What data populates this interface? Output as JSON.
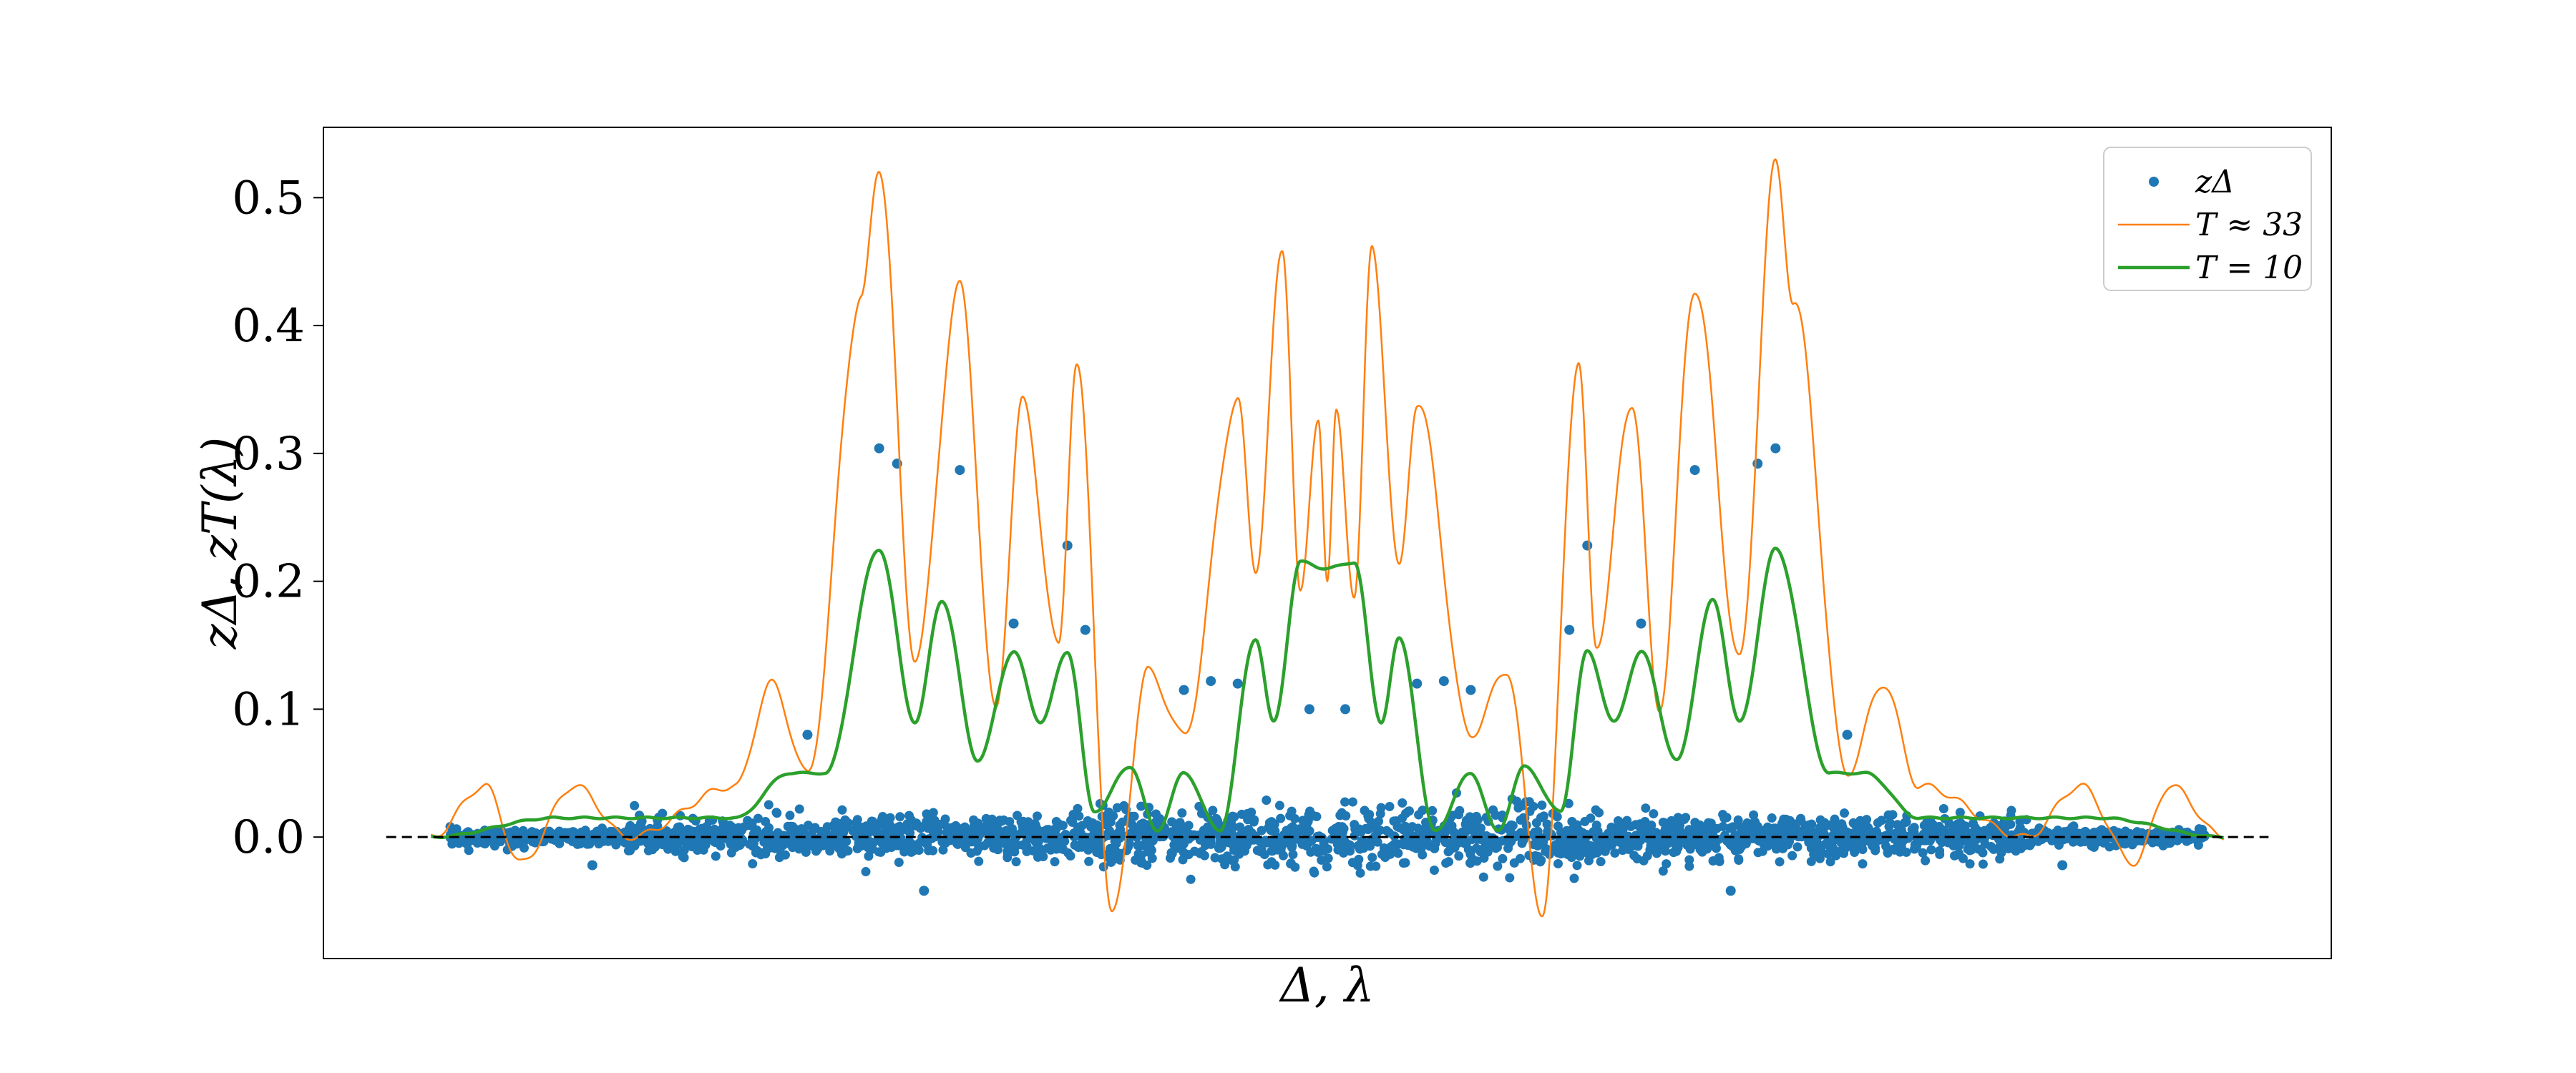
{
  "chart_data": {
    "type": "scatter",
    "title": "",
    "xlabel": "Δ,  λ",
    "ylabel": "zΔ,  zT(λ)",
    "xlim": [
      -1.12,
      1.12
    ],
    "ylim": [
      -0.095,
      0.555
    ],
    "xticks_shown": false,
    "yticks": [
      "0.0",
      "0.1",
      "0.2",
      "0.3",
      "0.4",
      "0.5"
    ],
    "grid": false,
    "legend_position": "top-right",
    "reference_line": {
      "y": 0.0,
      "style": "dashed",
      "color": "#000000"
    },
    "colors": {
      "scatter": "#1f77b4",
      "t33": "#ff7f0e",
      "t10": "#2ca02c"
    },
    "series": [
      {
        "name": "zΔ",
        "kind": "scatter",
        "note": "dense cloud of points near 0 plus a few outliers",
        "points": [
          [
            -0.5,
            0.304
          ],
          [
            -0.48,
            0.292
          ],
          [
            -0.41,
            0.287
          ],
          [
            -0.35,
            0.167
          ],
          [
            -0.29,
            0.228
          ],
          [
            -0.27,
            0.162
          ],
          [
            -0.16,
            0.115
          ],
          [
            -0.13,
            0.122
          ],
          [
            -0.1,
            0.12
          ],
          [
            -0.02,
            0.1
          ],
          [
            0.02,
            0.1
          ],
          [
            0.1,
            0.12
          ],
          [
            0.13,
            0.122
          ],
          [
            0.16,
            0.115
          ],
          [
            0.27,
            0.162
          ],
          [
            0.29,
            0.228
          ],
          [
            0.35,
            0.167
          ],
          [
            0.41,
            0.287
          ],
          [
            0.48,
            0.292
          ],
          [
            0.5,
            0.304
          ],
          [
            -0.58,
            0.08
          ],
          [
            0.58,
            0.08
          ],
          [
            -0.45,
            -0.042
          ],
          [
            0.45,
            -0.042
          ],
          [
            -0.82,
            -0.022
          ],
          [
            0.82,
            -0.022
          ]
        ]
      },
      {
        "name": "T ≈ 33",
        "kind": "line",
        "peaks": [
          [
            -1.0,
            0.0
          ],
          [
            -0.94,
            0.04
          ],
          [
            -0.9,
            -0.02
          ],
          [
            -0.84,
            0.04
          ],
          [
            -0.78,
            0.0
          ],
          [
            -0.66,
            0.04
          ],
          [
            -0.62,
            0.12
          ],
          [
            -0.58,
            0.05
          ],
          [
            -0.52,
            0.42
          ],
          [
            -0.5,
            0.525
          ],
          [
            -0.46,
            0.14
          ],
          [
            -0.41,
            0.43
          ],
          [
            -0.37,
            0.1
          ],
          [
            -0.34,
            0.34
          ],
          [
            -0.3,
            0.15
          ],
          [
            -0.28,
            0.37
          ],
          [
            -0.24,
            -0.06
          ],
          [
            -0.2,
            0.13
          ],
          [
            -0.16,
            0.08
          ],
          [
            -0.1,
            0.34
          ],
          [
            -0.08,
            0.21
          ],
          [
            -0.05,
            0.46
          ],
          [
            -0.03,
            0.19
          ],
          [
            -0.01,
            0.33
          ],
          [
            0.0,
            0.2
          ],
          [
            0.01,
            0.33
          ],
          [
            0.03,
            0.19
          ],
          [
            0.05,
            0.46
          ],
          [
            0.08,
            0.21
          ],
          [
            0.1,
            0.34
          ],
          [
            0.16,
            0.08
          ],
          [
            0.2,
            0.13
          ],
          [
            0.24,
            -0.06
          ],
          [
            0.28,
            0.37
          ],
          [
            0.3,
            0.15
          ],
          [
            0.34,
            0.34
          ],
          [
            0.37,
            0.1
          ],
          [
            0.41,
            0.43
          ],
          [
            0.46,
            0.14
          ],
          [
            0.5,
            0.525
          ],
          [
            0.52,
            0.42
          ],
          [
            0.58,
            0.05
          ],
          [
            0.62,
            0.12
          ],
          [
            0.66,
            0.04
          ],
          [
            0.78,
            0.0
          ],
          [
            0.84,
            0.04
          ],
          [
            0.9,
            -0.02
          ],
          [
            0.94,
            0.04
          ],
          [
            1.0,
            0.0
          ]
        ]
      },
      {
        "name": "T = 10",
        "kind": "line",
        "peaks": [
          [
            -1.0,
            0.0
          ],
          [
            -0.86,
            0.015
          ],
          [
            -0.66,
            0.015
          ],
          [
            -0.6,
            0.05
          ],
          [
            -0.56,
            0.05
          ],
          [
            -0.5,
            0.225
          ],
          [
            -0.46,
            0.09
          ],
          [
            -0.43,
            0.185
          ],
          [
            -0.39,
            0.06
          ],
          [
            -0.35,
            0.145
          ],
          [
            -0.32,
            0.09
          ],
          [
            -0.29,
            0.145
          ],
          [
            -0.26,
            0.02
          ],
          [
            -0.22,
            0.055
          ],
          [
            -0.19,
            0.005
          ],
          [
            -0.16,
            0.05
          ],
          [
            -0.12,
            0.005
          ],
          [
            -0.08,
            0.155
          ],
          [
            -0.06,
            0.09
          ],
          [
            -0.03,
            0.215
          ],
          [
            0.0,
            0.21
          ],
          [
            0.03,
            0.215
          ],
          [
            0.06,
            0.09
          ],
          [
            0.08,
            0.155
          ],
          [
            0.12,
            0.005
          ],
          [
            0.16,
            0.05
          ],
          [
            0.19,
            0.005
          ],
          [
            0.22,
            0.055
          ],
          [
            0.26,
            0.02
          ],
          [
            0.29,
            0.145
          ],
          [
            0.32,
            0.09
          ],
          [
            0.35,
            0.145
          ],
          [
            0.39,
            0.06
          ],
          [
            0.43,
            0.185
          ],
          [
            0.46,
            0.09
          ],
          [
            0.5,
            0.225
          ],
          [
            0.56,
            0.05
          ],
          [
            0.6,
            0.05
          ],
          [
            0.66,
            0.015
          ],
          [
            0.86,
            0.015
          ],
          [
            1.0,
            0.0
          ]
        ]
      }
    ]
  }
}
